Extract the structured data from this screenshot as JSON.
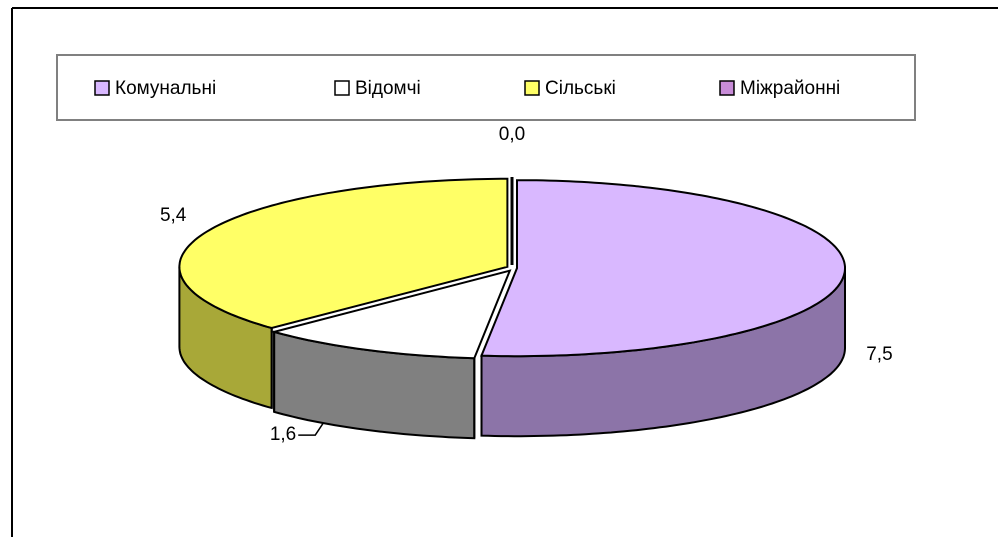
{
  "chart_data": {
    "type": "pie3d",
    "categories": [
      "Комунальні",
      "Відомчі",
      "Сільські",
      "Міжрайонні"
    ],
    "values": [
      7.5,
      1.6,
      5.4,
      0.0
    ],
    "value_labels": [
      "7,5",
      "1,6",
      "5,4",
      "0,0"
    ],
    "colors": [
      "#d9b8ff",
      "#ffffff",
      "#ffff66",
      "#c88cd8"
    ],
    "side_colors": [
      "#8c74a8",
      "#808080",
      "#a8a838",
      "#8a5a98"
    ],
    "legend": "top"
  }
}
